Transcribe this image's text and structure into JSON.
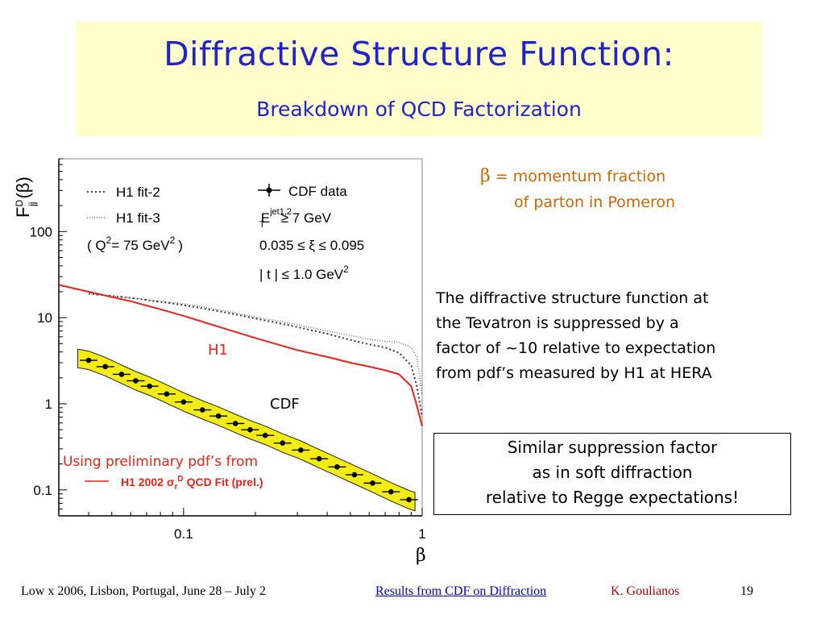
{
  "header": {
    "title": "Diffractive Structure Function:",
    "subtitle": "Breakdown of QCD Factorization"
  },
  "definition": {
    "symbol": "β",
    "line1": "= momentum fraction",
    "line2": "of parton in Pomeron"
  },
  "paragraph": {
    "lines": [
      "The diffractive structure function at",
      "the Tevatron is suppressed by  a",
      "factor of ~10 relative to expectation",
      "from pdf’s measured by H1 at HERA"
    ]
  },
  "note_box": {
    "lines": [
      "Similar suppression factor",
      "as in soft diffraction",
      "relative to Regge expectations!"
    ]
  },
  "footer": {
    "conference": "Low x 2006, Lisbon, Portugal, June 28 – July 2",
    "link": "Results from CDF on Diffraction",
    "author": "K. Goulianos",
    "page": "19"
  },
  "colors": {
    "title": "#2222cc",
    "title_bg": "#ffffcc",
    "definition": "#cc6600",
    "h1_curve": "#e8231b",
    "cdf_band": "#f2ec14",
    "link": "#0000cc",
    "author": "#aa0000"
  },
  "chart_data": {
    "type": "line",
    "ylabel": "F_jj^D (β)",
    "xlabel": "β",
    "xscale": "log",
    "yscale": "log",
    "xlim": [
      0.03,
      1.0
    ],
    "ylim": [
      0.05,
      700
    ],
    "xticks": [
      0.1,
      1
    ],
    "xtick_labels": [
      "0.1",
      "1"
    ],
    "yticks": [
      0.1,
      1,
      10,
      100
    ],
    "ytick_labels": [
      "0.1",
      "1",
      "10",
      "100"
    ],
    "legend": {
      "fit2": "H1 fit-2",
      "fit3": "H1 fit-3",
      "q2": "( Q",
      "q2_rest": "= 75 GeV",
      "q2_close": ")",
      "cdf": "CDF data",
      "et": "E",
      "et_sup": "jet1,2",
      "et_sub": "T",
      "et_rest": "≥ 7 GeV",
      "xi": "0.035 ≤ ξ ≤ 0.095",
      "t": "| t | ≤ 1.0 GeV"
    },
    "annotations": {
      "h1": "H1",
      "cdf": "CDF",
      "pdf_note": "Using preliminary pdf’s from",
      "pdf_fit": "H1 2002",
      "pdf_sigma": "σ",
      "pdf_sub": "r",
      "pdf_sup": "D",
      "pdf_rest": "QCD Fit (prel.)"
    },
    "series": [
      {
        "name": "H1 fit-2",
        "style": "dotted",
        "x": [
          0.04,
          0.06,
          0.1,
          0.15,
          0.2,
          0.3,
          0.4,
          0.5,
          0.6,
          0.7,
          0.8,
          0.9,
          0.95,
          1.0
        ],
        "y": [
          19,
          17,
          14,
          11.5,
          9.8,
          7.8,
          6.5,
          5.5,
          4.9,
          4.5,
          3.9,
          2.8,
          1.6,
          0.7
        ]
      },
      {
        "name": "H1 fit-3",
        "style": "dotted",
        "x": [
          0.04,
          0.06,
          0.1,
          0.15,
          0.2,
          0.3,
          0.4,
          0.5,
          0.6,
          0.7,
          0.8,
          0.9,
          0.95,
          1.0
        ],
        "y": [
          19,
          17,
          14.5,
          12,
          10.2,
          8.3,
          7,
          6.2,
          5.6,
          5.3,
          5.2,
          4.5,
          3.5,
          1.3
        ]
      },
      {
        "name": "H1",
        "style": "solid",
        "x": [
          0.03,
          0.04,
          0.06,
          0.08,
          0.1,
          0.15,
          0.2,
          0.3,
          0.4,
          0.5,
          0.6,
          0.7,
          0.8,
          0.9,
          0.95,
          1.0
        ],
        "y": [
          24,
          20,
          15.5,
          12.5,
          10.5,
          7.4,
          5.8,
          4.2,
          3.5,
          3.0,
          2.7,
          2.45,
          2.2,
          1.6,
          0.95,
          0.55
        ]
      }
    ],
    "cdf_points": [
      {
        "x": 0.04,
        "y": 3.2
      },
      {
        "x": 0.047,
        "y": 2.7
      },
      {
        "x": 0.055,
        "y": 2.2
      },
      {
        "x": 0.063,
        "y": 1.85
      },
      {
        "x": 0.072,
        "y": 1.6
      },
      {
        "x": 0.085,
        "y": 1.3
      },
      {
        "x": 0.1,
        "y": 1.05
      },
      {
        "x": 0.12,
        "y": 0.85
      },
      {
        "x": 0.14,
        "y": 0.72
      },
      {
        "x": 0.165,
        "y": 0.59
      },
      {
        "x": 0.19,
        "y": 0.5
      },
      {
        "x": 0.22,
        "y": 0.43
      },
      {
        "x": 0.26,
        "y": 0.35
      },
      {
        "x": 0.31,
        "y": 0.29
      },
      {
        "x": 0.37,
        "y": 0.23
      },
      {
        "x": 0.44,
        "y": 0.185
      },
      {
        "x": 0.52,
        "y": 0.15
      },
      {
        "x": 0.62,
        "y": 0.12
      },
      {
        "x": 0.74,
        "y": 0.095
      },
      {
        "x": 0.88,
        "y": 0.077
      }
    ]
  }
}
